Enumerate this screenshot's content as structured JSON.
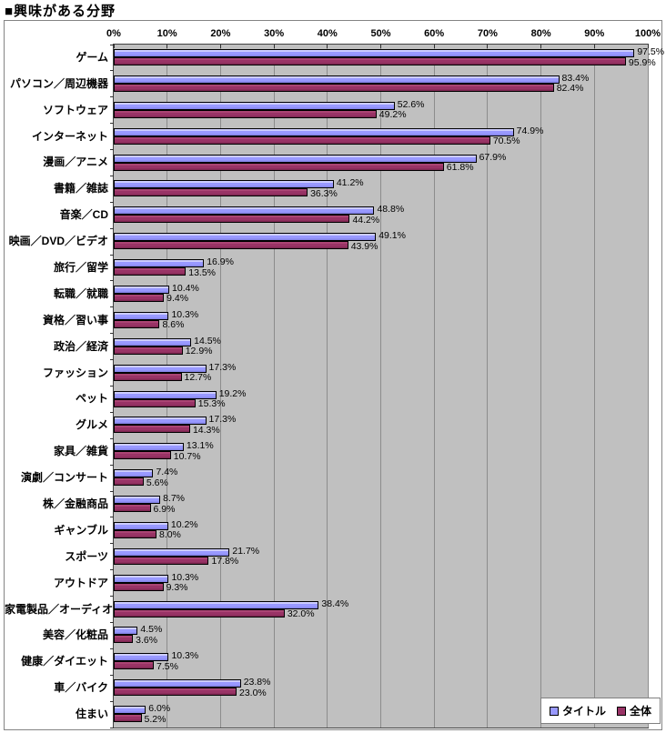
{
  "page": {
    "title": "■興味がある分野"
  },
  "legend": {
    "series1_label": "タイトル",
    "series2_label": "全体"
  },
  "colors": {
    "series1": "#9999FF",
    "series2": "#993366",
    "plot_background": "#C0C0C0",
    "gridline": "#8C8C8C",
    "chart_border": "#848484"
  },
  "chart_data": {
    "type": "bar",
    "orientation": "horizontal",
    "title": "■興味がある分野",
    "xlabel": "",
    "ylabel": "",
    "xlim": [
      0,
      100
    ],
    "grid": "vertical",
    "legend_position": "bottom-right",
    "x_ticks": [
      "0%",
      "10%",
      "20%",
      "30%",
      "40%",
      "50%",
      "60%",
      "70%",
      "80%",
      "90%",
      "100%"
    ],
    "categories": [
      "ゲーム",
      "パソコン／周辺機器",
      "ソフトウェア",
      "インターネット",
      "漫画／アニメ",
      "書籍／雑誌",
      "音楽／CD",
      "映画／DVD／ビデオ",
      "旅行／留学",
      "転職／就職",
      "資格／習い事",
      "政治／経済",
      "ファッション",
      "ペット",
      "グルメ",
      "家具／雑貨",
      "演劇／コンサート",
      "株／金融商品",
      "ギャンブル",
      "スポーツ",
      "アウトドア",
      "家電製品／オーディオ",
      "美容／化粧品",
      "健康／ダイエット",
      "車／バイク",
      "住まい"
    ],
    "series": [
      {
        "name": "タイトル",
        "color": "#9999FF",
        "values": [
          97.5,
          83.4,
          52.6,
          74.9,
          67.9,
          41.2,
          48.8,
          49.1,
          16.9,
          10.4,
          10.3,
          14.5,
          17.3,
          19.2,
          17.3,
          13.1,
          7.4,
          8.7,
          10.2,
          21.7,
          10.3,
          38.4,
          4.5,
          10.3,
          23.8,
          6.0
        ],
        "labels": [
          "97.5%",
          "83.4%",
          "52.6%",
          "74.9%",
          "67.9%",
          "41.2%",
          "48.8%",
          "49.1%",
          "16.9%",
          "10.4%",
          "10.3%",
          "14.5%",
          "17.3%",
          "19.2%",
          "17.3%",
          "13.1%",
          "7.4%",
          "8.7%",
          "10.2%",
          "21.7%",
          "10.3%",
          "38.4%",
          "4.5%",
          "10.3%",
          "23.8%",
          "6.0%"
        ]
      },
      {
        "name": "全体",
        "color": "#993366",
        "values": [
          95.9,
          82.4,
          49.2,
          70.5,
          61.8,
          36.3,
          44.2,
          43.9,
          13.5,
          9.4,
          8.6,
          12.9,
          12.7,
          15.3,
          14.3,
          10.7,
          5.6,
          6.9,
          8.0,
          17.8,
          9.3,
          32.0,
          3.6,
          7.5,
          23.0,
          5.2
        ],
        "labels": [
          "95.9%",
          "82.4%",
          "49.2%",
          "70.5%",
          "61.8%",
          "36.3%",
          "44.2%",
          "43.9%",
          "13.5%",
          "9.4%",
          "8.6%",
          "12.9%",
          "12.7%",
          "15.3%",
          "14.3%",
          "10.7%",
          "5.6%",
          "6.9%",
          "8.0%",
          "17.8%",
          "9.3%",
          "32.0%",
          "3.6%",
          "7.5%",
          "23.0%",
          "5.2%"
        ]
      }
    ]
  }
}
